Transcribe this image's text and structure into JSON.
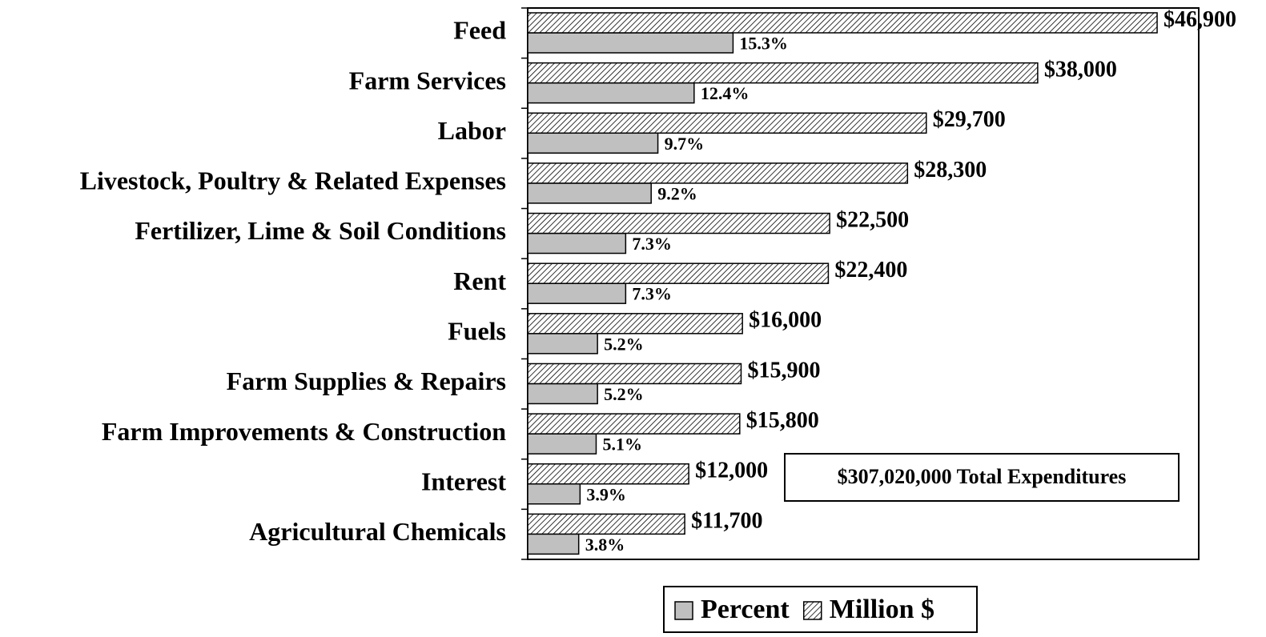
{
  "chart_data": {
    "type": "bar",
    "orientation": "horizontal",
    "categories": [
      "Feed",
      "Farm Services",
      "Labor",
      "Livestock, Poultry & Related Expenses",
      "Fertilizer, Lime & Soil Conditions",
      "Rent",
      "Fuels",
      "Farm Supplies & Repairs",
      "Farm Improvements & Construction",
      "Interest",
      "Agricultural Chemicals"
    ],
    "series": [
      {
        "name": "Percent",
        "color": "#c0c0c0",
        "axis": "x2",
        "values": [
          15.3,
          12.4,
          9.7,
          9.2,
          7.3,
          7.3,
          5.2,
          5.2,
          5.1,
          3.9,
          3.8
        ],
        "value_labels": [
          "15.3%",
          "12.4%",
          "9.7%",
          "9.2%",
          "7.3%",
          "7.3%",
          "5.2%",
          "5.2%",
          "5.1%",
          "3.9%",
          "3.8%"
        ]
      },
      {
        "name": "Million $",
        "color": "#000000",
        "hatch": true,
        "values": [
          46900,
          38000,
          29700,
          28300,
          22500,
          22400,
          16000,
          15900,
          15800,
          12000,
          11700
        ],
        "value_labels": [
          "$46,900",
          "$38,000",
          "$29,700",
          "$28,300",
          "$22,500",
          "$22,400",
          "$16,000",
          "$15,900",
          "$15,800",
          "$12,000",
          "$11,700"
        ]
      }
    ],
    "xlim": [
      0,
      50000
    ],
    "x2lim": [
      0,
      50
    ],
    "annotation": "$307,020,000 Total Expenditures",
    "legend": "bottom"
  }
}
